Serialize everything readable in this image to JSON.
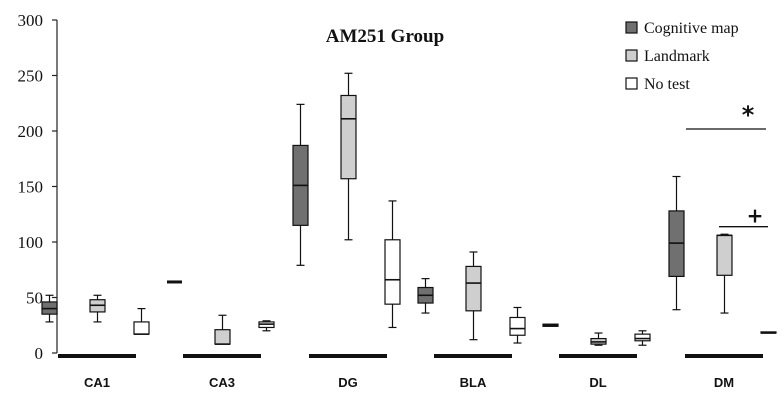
{
  "chart_data": {
    "type": "box",
    "title": "AM251 Group",
    "ylim": [
      0,
      300
    ],
    "yticks": [
      0,
      50,
      100,
      150,
      200,
      250,
      300
    ],
    "categories": [
      "CA1",
      "CA3",
      "DG",
      "BLA",
      "DL",
      "DM"
    ],
    "grid": false,
    "legend_position": "top-right",
    "series": [
      {
        "name": "Cognitive map",
        "color": "#707070",
        "boxes": [
          {
            "min": 28,
            "q1": 35,
            "median": 40,
            "q3": 46,
            "max": 52
          },
          {
            "min": 64,
            "q1": 64,
            "median": 64,
            "q3": 64,
            "max": 64
          },
          {
            "min": 79,
            "q1": 115,
            "median": 151,
            "q3": 187,
            "max": 224
          },
          {
            "min": 36,
            "q1": 45,
            "median": 52,
            "q3": 59,
            "max": 67
          },
          {
            "min": 24,
            "q1": 24,
            "median": 25,
            "q3": 26,
            "max": 26
          },
          {
            "min": 39,
            "q1": 69,
            "median": 99,
            "q3": 128,
            "max": 159
          }
        ]
      },
      {
        "name": "Landmark",
        "color": "#cfcfcf",
        "boxes": [
          {
            "min": 28,
            "q1": 37,
            "median": 43,
            "q3": 48,
            "max": 52
          },
          {
            "min": 8,
            "q1": 8,
            "median": 8,
            "q3": 21,
            "max": 34
          },
          {
            "min": 102,
            "q1": 157,
            "median": 211,
            "q3": 232,
            "max": 252
          },
          {
            "min": 12,
            "q1": 38,
            "median": 63,
            "q3": 78,
            "max": 91
          },
          {
            "min": 7,
            "q1": 8,
            "median": 10,
            "q3": 13,
            "max": 18
          },
          {
            "min": 36,
            "q1": 70,
            "median": 106,
            "q3": 106,
            "max": 107
          }
        ]
      },
      {
        "name": "No test",
        "color": "#ffffff",
        "boxes": [
          {
            "min": 17,
            "q1": 17,
            "median": 17,
            "q3": 28,
            "max": 40
          },
          {
            "min": 20,
            "q1": 23,
            "median": 26,
            "q3": 28,
            "max": 29
          },
          {
            "min": 23,
            "q1": 44,
            "median": 66,
            "q3": 102,
            "max": 137
          },
          {
            "min": 9,
            "q1": 16,
            "median": 22,
            "q3": 32,
            "max": 41
          },
          {
            "min": 7,
            "q1": 11,
            "median": 13,
            "q3": 17,
            "max": 20
          },
          {
            "min": 18,
            "q1": 18,
            "median": 18,
            "q3": 19,
            "max": 19
          }
        ]
      }
    ],
    "annotations": [
      {
        "text": "*",
        "y": 182
      },
      {
        "text": "+",
        "y": 121
      }
    ]
  }
}
